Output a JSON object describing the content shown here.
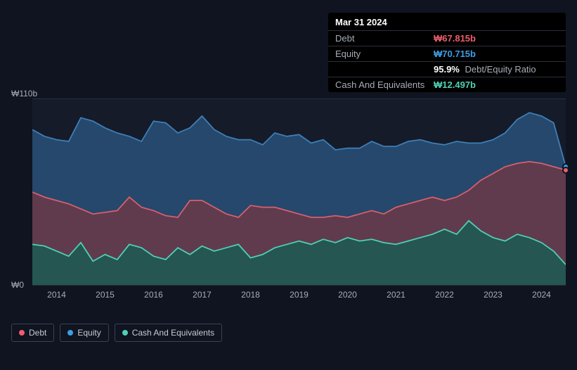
{
  "tooltip": {
    "date": "Mar 31 2024",
    "rows": {
      "debt": {
        "label": "Debt",
        "value": "₩67.815b"
      },
      "equity": {
        "label": "Equity",
        "value": "₩70.715b"
      },
      "ratio": {
        "label": "",
        "value": "95.9%",
        "suffix": "Debt/Equity Ratio"
      },
      "cash": {
        "label": "Cash And Equivalents",
        "value": "₩12.497b"
      }
    }
  },
  "chart": {
    "type": "area",
    "background_color": "#151b29",
    "grid_color": "#2a2f3a",
    "y_max_label": "₩110b",
    "y_min_label": "₩0",
    "ylim": [
      0,
      110
    ],
    "x_categories": [
      "2014",
      "2015",
      "2016",
      "2017",
      "2018",
      "2019",
      "2020",
      "2021",
      "2022",
      "2023",
      "2024"
    ],
    "xlim_fraction": [
      0,
      1
    ],
    "series": {
      "equity": {
        "label": "Equity",
        "color": "#3e7fb8",
        "fill": "#274e73",
        "fill_opacity": 0.9,
        "values": [
          92,
          88,
          86,
          85,
          99,
          97,
          93,
          90,
          88,
          85,
          97,
          96,
          90,
          93,
          100,
          92,
          88,
          86,
          86,
          83,
          90,
          88,
          89,
          84,
          86,
          80,
          81,
          81,
          85,
          82,
          82,
          85,
          86,
          84,
          83,
          85,
          84,
          84,
          86,
          90,
          98,
          102,
          100,
          96,
          70
        ]
      },
      "debt": {
        "label": "Debt",
        "color": "#d85f6e",
        "fill": "#6b3a48",
        "fill_opacity": 0.85,
        "values": [
          55,
          52,
          50,
          48,
          45,
          42,
          43,
          44,
          52,
          46,
          44,
          41,
          40,
          50,
          50,
          46,
          42,
          40,
          47,
          46,
          46,
          44,
          42,
          40,
          40,
          41,
          40,
          42,
          44,
          42,
          46,
          48,
          50,
          52,
          50,
          52,
          56,
          62,
          66,
          70,
          72,
          73,
          72,
          70,
          68
        ]
      },
      "cash": {
        "label": "Cash And Equivalents",
        "color": "#4fd1b3",
        "fill": "#1f5a52",
        "fill_opacity": 0.9,
        "values": [
          24,
          23,
          20,
          17,
          25,
          14,
          18,
          15,
          24,
          22,
          17,
          15,
          22,
          18,
          23,
          20,
          22,
          24,
          16,
          18,
          22,
          24,
          26,
          24,
          27,
          25,
          28,
          26,
          27,
          25,
          24,
          26,
          28,
          30,
          33,
          30,
          38,
          32,
          28,
          26,
          30,
          28,
          25,
          20,
          12
        ]
      }
    },
    "line_width": 1.8,
    "end_markers": {
      "equity": {
        "color": "#3e9de6",
        "y_value": 70
      },
      "debt": {
        "color": "#ee5d6c",
        "y_value": 68
      }
    }
  },
  "legend": {
    "debt": {
      "label": "Debt",
      "color": "#ee5d6c"
    },
    "equity": {
      "label": "Equity",
      "color": "#3e9de6"
    },
    "cash": {
      "label": "Cash And Equivalents",
      "color": "#4fd1b3"
    }
  }
}
